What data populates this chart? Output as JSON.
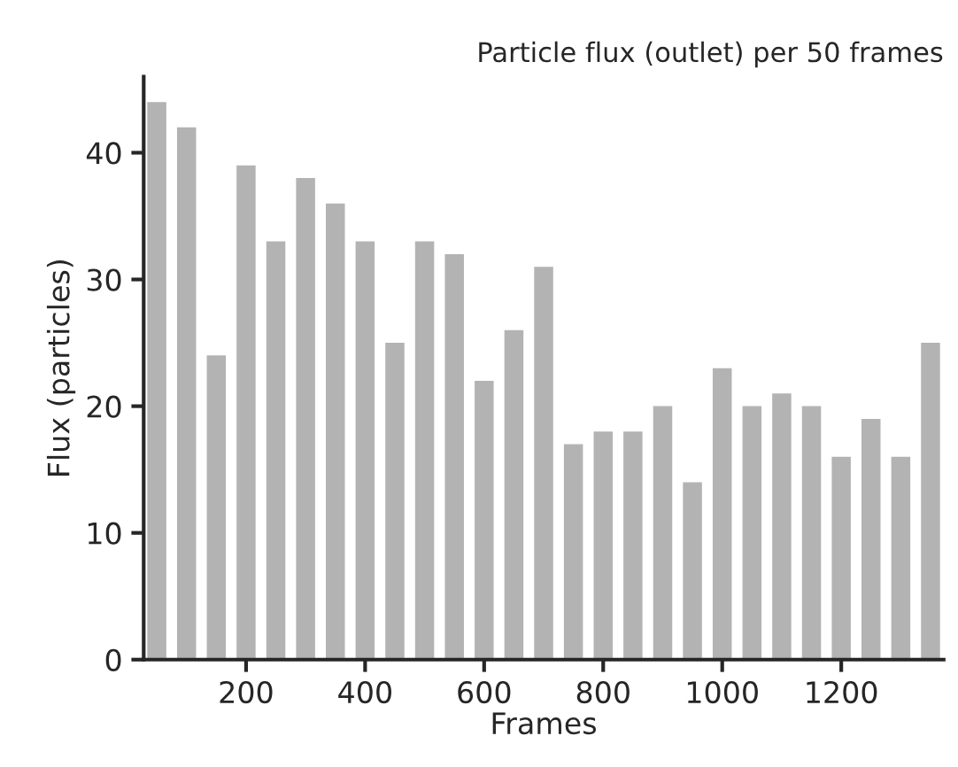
{
  "chart_data": {
    "type": "bar",
    "title": "Particle flux (outlet) per 50 frames",
    "xlabel": "Frames",
    "ylabel": "Flux (particles)",
    "x": [
      50,
      100,
      150,
      200,
      250,
      300,
      350,
      400,
      450,
      500,
      550,
      600,
      650,
      700,
      750,
      800,
      850,
      900,
      950,
      1000,
      1050,
      1100,
      1150,
      1200,
      1250,
      1300,
      1350
    ],
    "values": [
      44,
      42,
      24,
      39,
      33,
      38,
      36,
      33,
      25,
      33,
      32,
      22,
      26,
      31,
      17,
      18,
      18,
      20,
      14,
      23,
      20,
      21,
      20,
      16,
      19,
      16,
      25
    ],
    "color": "#b3b3b3",
    "xlim": [
      28,
      1372
    ],
    "xticks": [
      200,
      400,
      600,
      800,
      1000,
      1200
    ],
    "ylim": [
      0,
      46
    ],
    "yticks": [
      0,
      10,
      20,
      30,
      40
    ],
    "grid": false
  }
}
